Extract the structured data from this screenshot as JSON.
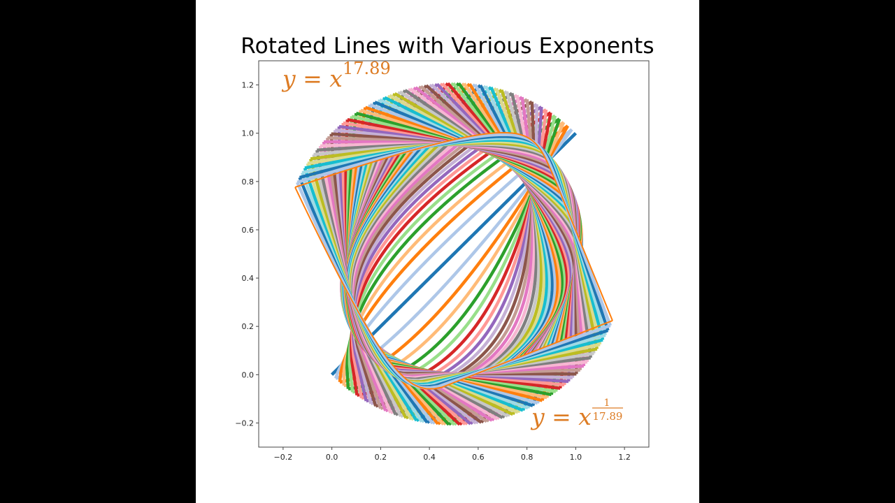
{
  "chart_data": {
    "type": "line",
    "title": "Rotated Lines with Various Exponents",
    "xlabel": "",
    "ylabel": "",
    "xlim": [
      -0.3,
      1.3
    ],
    "ylim": [
      -0.3,
      1.3
    ],
    "grid": false,
    "legend": null,
    "xticks": [
      -0.2,
      0.0,
      0.2,
      0.4,
      0.6,
      0.8,
      1.0,
      1.2
    ],
    "xtick_labels": [
      "−0.2",
      "0.0",
      "0.2",
      "0.4",
      "0.6",
      "0.8",
      "1.0",
      "1.2"
    ],
    "yticks": [
      -0.2,
      0.0,
      0.2,
      0.4,
      0.6,
      0.8,
      1.0,
      1.2
    ],
    "ytick_labels": [
      "−0.2",
      "0.0",
      "0.2",
      "0.4",
      "0.6",
      "0.8",
      "1.0",
      "1.2"
    ],
    "description": "Pairs of curves y = x^p and y = x^(1/p) for x in [0,1], each rotated counter-clockwise about (0.5, 0.5); exponent grows from 1 to 17.89 while rotation grows from 0 to ~112 degrees",
    "series_generator": {
      "count": 63,
      "exponent_start": 1.0,
      "exponent_end": 17.89,
      "rotation_start_deg": 0,
      "rotation_end_deg": 112,
      "rotation_center": [
        0.5,
        0.5
      ],
      "line_width": 4.5,
      "last_line_width": 2,
      "colormap": "tab20",
      "colors": [
        "#1f77b4",
        "#aec7e8",
        "#ff7f0e",
        "#ffbb78",
        "#2ca02c",
        "#98df8a",
        "#d62728",
        "#ff9896",
        "#9467bd",
        "#c5b0d5",
        "#8c564b",
        "#c49c94",
        "#e377c2",
        "#f7b6d2",
        "#7f7f7f",
        "#c7c7c7",
        "#bcbd22",
        "#dbdb8d",
        "#17becf",
        "#9edae5"
      ]
    },
    "annotations": [
      {
        "text": "y = x^17.89",
        "base": "y = x",
        "exponent": "17.89",
        "x": -0.19,
        "y": 1.2,
        "color": "#dd7c24"
      },
      {
        "text": "y = x^(1/17.89)",
        "base": "y = x",
        "numerator": "1",
        "denominator": "17.89",
        "x": 0.83,
        "y": -0.2,
        "color": "#dd7c24"
      }
    ]
  },
  "figure": {
    "title": "Rotated Lines with Various Exponents",
    "annotation_top": {
      "base": "y = x",
      "exponent": "17.89"
    },
    "annotation_bottom": {
      "base": "y = x",
      "numerator": "1",
      "denominator": "17.89"
    }
  }
}
